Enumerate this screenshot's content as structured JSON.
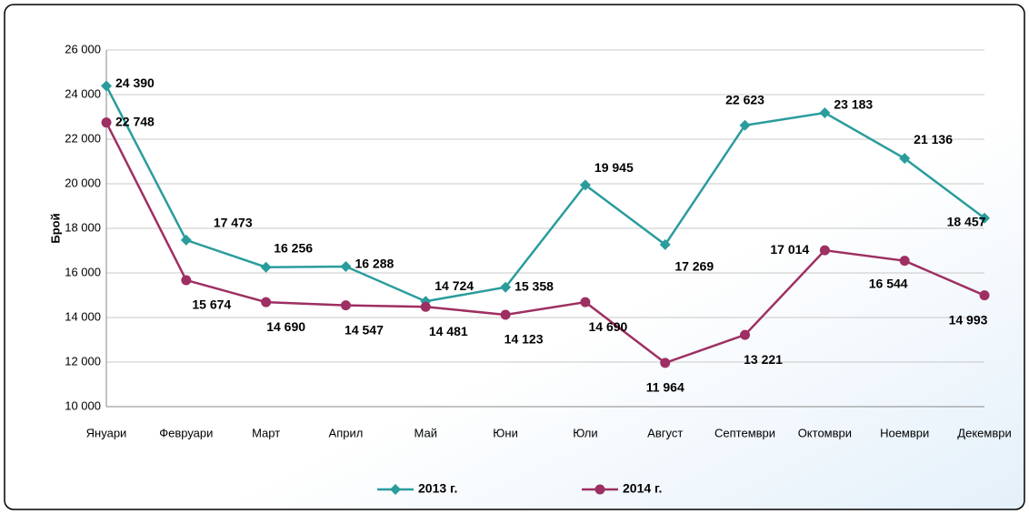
{
  "chart_data": {
    "type": "line",
    "y_label": "Брой",
    "categories": [
      "Януари",
      "Февруари",
      "Март",
      "Април",
      "Май",
      "Юни",
      "Юли",
      "Август",
      "Септември",
      "Октомври",
      "Ноември",
      "Декември"
    ],
    "series": [
      {
        "name": "2013 г.",
        "color": "#2a9c9c",
        "marker": "diamond",
        "values": [
          24390,
          17473,
          16256,
          16288,
          14724,
          15358,
          19945,
          17269,
          22623,
          23183,
          21136,
          18457
        ],
        "value_labels": [
          "24 390",
          "17 473",
          "16 256",
          "16 288",
          "14 724",
          "15 358",
          "19 945",
          "17 269",
          "22 623",
          "23 183",
          "21 136",
          "18 457"
        ]
      },
      {
        "name": "2014 г.",
        "color": "#9e2f62",
        "marker": "circle",
        "values": [
          22748,
          15674,
          14690,
          14547,
          14481,
          14123,
          14690,
          11964,
          13221,
          17014,
          16544,
          14993
        ],
        "value_labels": [
          "22 748",
          "15 674",
          "14 690",
          "14 547",
          "14 481",
          "14 123",
          "14 690",
          "11 964",
          "13 221",
          "17 014",
          "16 544",
          "14 993"
        ]
      }
    ],
    "ylim": [
      10000,
      26000
    ],
    "yticks": [
      {
        "value": 10000,
        "label": "10 000"
      },
      {
        "value": 12000,
        "label": "12 000"
      },
      {
        "value": 14000,
        "label": "14 000"
      },
      {
        "value": 16000,
        "label": "16 000"
      },
      {
        "value": 18000,
        "label": "18 000"
      },
      {
        "value": 20000,
        "label": "20 000"
      },
      {
        "value": 22000,
        "label": "22 000"
      },
      {
        "value": 24000,
        "label": "24 000"
      },
      {
        "value": 26000,
        "label": "26 000"
      }
    ],
    "grid": true
  }
}
